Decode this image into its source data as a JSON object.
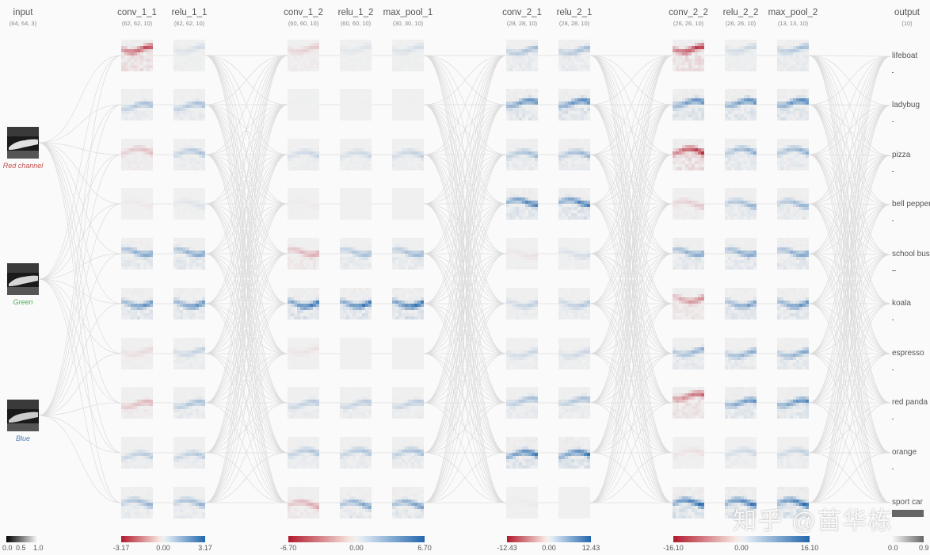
{
  "columns": [
    {
      "title": "input",
      "dims": "(64, 64, 3)"
    },
    {
      "title": "conv_1_1",
      "dims": "(62, 62, 10)"
    },
    {
      "title": "relu_1_1",
      "dims": "(62, 62, 10)"
    },
    {
      "title": "conv_1_2",
      "dims": "(60, 60, 10)"
    },
    {
      "title": "relu_1_2",
      "dims": "(60, 60, 10)"
    },
    {
      "title": "max_pool_1",
      "dims": "(30, 30, 10)"
    },
    {
      "title": "conv_2_1",
      "dims": "(28, 28, 10)"
    },
    {
      "title": "relu_2_1",
      "dims": "(28, 28, 10)"
    },
    {
      "title": "conv_2_2",
      "dims": "(26, 26, 10)"
    },
    {
      "title": "relu_2_2",
      "dims": "(26, 26, 10)"
    },
    {
      "title": "max_pool_2",
      "dims": "(13, 13, 10)"
    },
    {
      "title": "output",
      "dims": "(10)"
    }
  ],
  "input_channels": [
    {
      "label": "Red channel",
      "color": "#c0504d"
    },
    {
      "label": "Green",
      "color": "#4caf50"
    },
    {
      "label": "Blue",
      "color": "#4a7fb5"
    }
  ],
  "output_classes": [
    {
      "label": "lifeboat",
      "prob": 0.005
    },
    {
      "label": "ladybug",
      "prob": 0.003
    },
    {
      "label": "pizza",
      "prob": 0.003
    },
    {
      "label": "bell pepper",
      "prob": 0.004
    },
    {
      "label": "school bus",
      "prob": 0.04
    },
    {
      "label": "koala",
      "prob": 0.004
    },
    {
      "label": "espresso",
      "prob": 0.008
    },
    {
      "label": "red panda",
      "prob": 0.012
    },
    {
      "label": "orange",
      "prob": 0.001
    },
    {
      "label": "sport car",
      "prob": 0.93
    }
  ],
  "legends": [
    {
      "min": "0.0",
      "mid": "0.5",
      "max": "1.0",
      "type": "gray"
    },
    {
      "min": "-3.17",
      "mid": "0.00",
      "max": "3.17",
      "type": "diverging"
    },
    {
      "min": "-6.70",
      "mid": "0.00",
      "max": "6.70",
      "type": "diverging"
    },
    {
      "min": "-12.43",
      "mid": "0.00",
      "max": "12.43",
      "type": "diverging"
    },
    {
      "min": "-16.10",
      "mid": "0.00",
      "max": "16.10",
      "type": "diverging"
    },
    {
      "min": "0.0",
      "mid": "",
      "max": "0.9",
      "type": "gray"
    }
  ],
  "colors": {
    "negative": "#b2182b",
    "neutral": "#f0f0f0",
    "positive": "#2166ac",
    "edge": "#dcdcdc"
  },
  "watermark": "知乎 @苗华栋"
}
